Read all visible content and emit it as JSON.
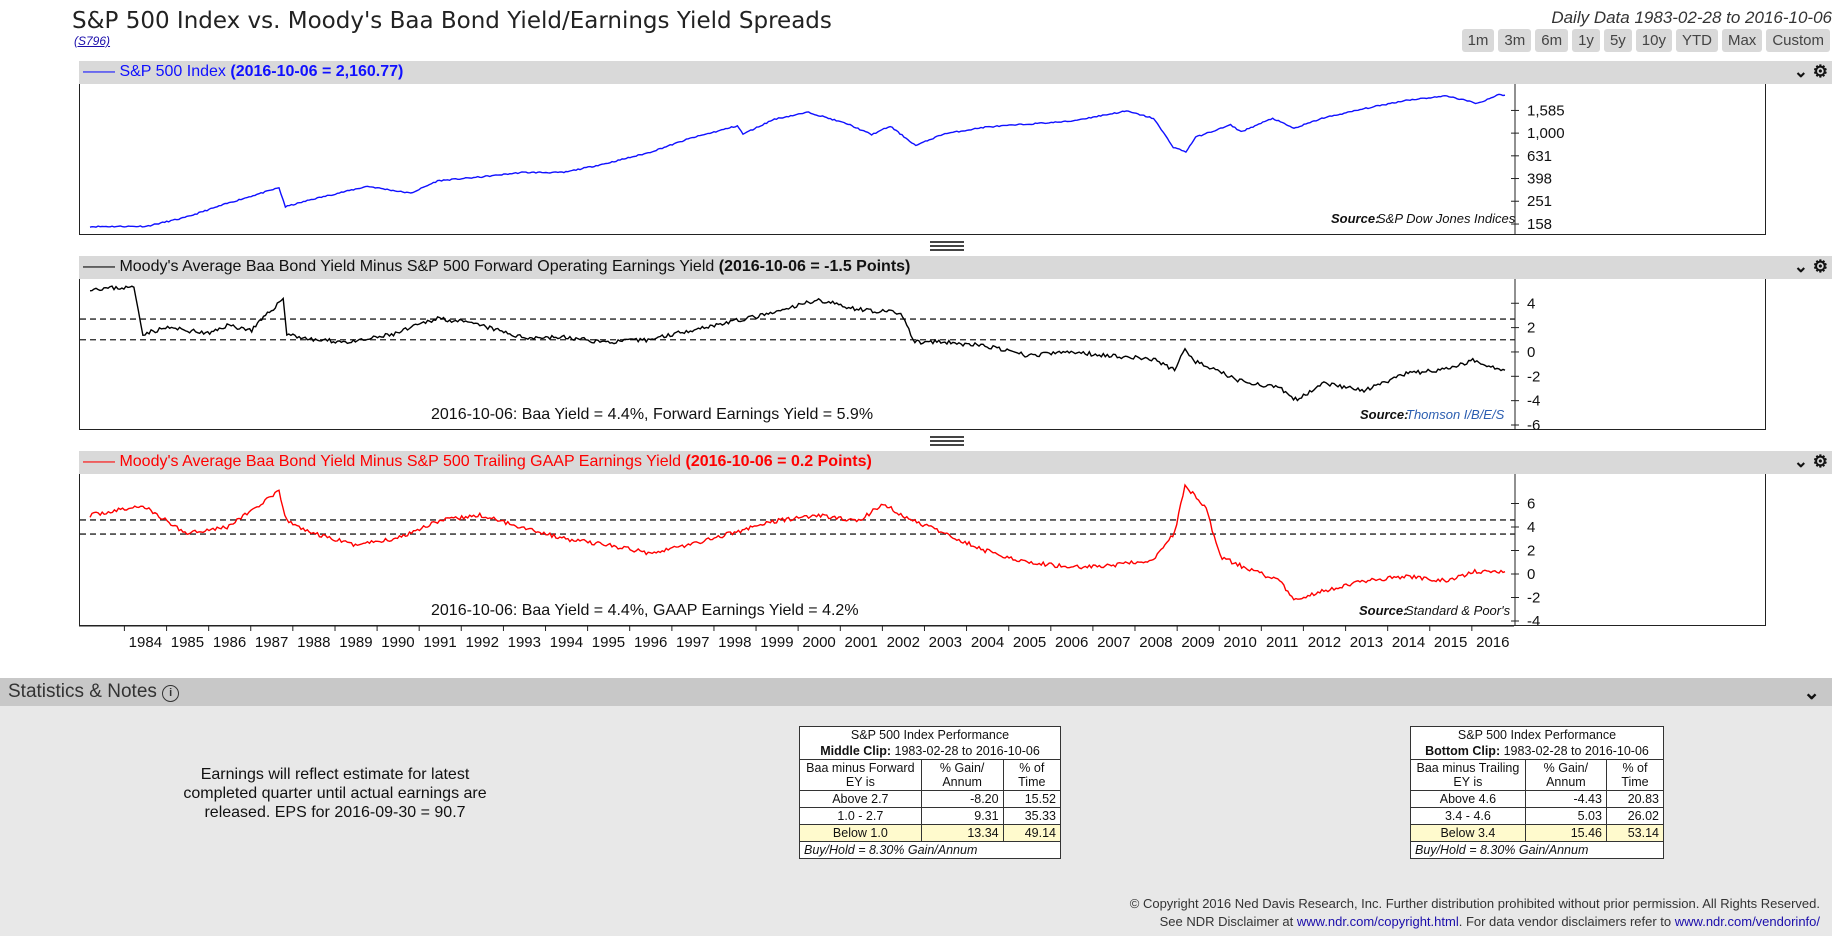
{
  "header": {
    "title": "S&P 500 Index vs. Moody's Baa Bond Yield/Earnings Yield Spreads",
    "code": "(S796)",
    "daily_range": "Daily Data 1983-02-28 to 2016-10-06",
    "range_buttons": [
      "1m",
      "3m",
      "6m",
      "1y",
      "5y",
      "10y",
      "YTD",
      "Max",
      "Custom"
    ]
  },
  "colors": {
    "sp500": "#1010ff",
    "forward": "#000000",
    "trailing": "#ff0000",
    "panel_bg": "#d9d9d9",
    "highlight": "#fffacd"
  },
  "icons": [
    "chevron-down-icon",
    "gear-icon",
    "info-icon",
    "splitter-icon"
  ],
  "panels": [
    {
      "label": "S&P 500 Index",
      "value_label": "(2016-10-06 = 2,160.77)",
      "source_label": "Source:",
      "source": "S&P Dow Jones Indices"
    },
    {
      "label": "Moody's Average Baa Bond Yield Minus S&P 500 Forward Operating Earnings Yield",
      "value_label": "(2016-10-06 = -1.5 Points)",
      "annotation": "2016-10-06: Baa Yield = 4.4%, Forward Earnings Yield = 5.9%",
      "source_label": "Source:",
      "source": "Thomson I/B/E/S"
    },
    {
      "label": "Moody's Average Baa Bond Yield Minus S&P 500 Trailing GAAP Earnings Yield",
      "value_label": "(2016-10-06 = 0.2 Points)",
      "annotation": "2016-10-06: Baa Yield = 4.4%, GAAP Earnings Yield = 4.2%",
      "source_label": "Source:",
      "source": "Standard & Poor's"
    }
  ],
  "chart_data": [
    {
      "type": "line",
      "title": "S&P 500 Index",
      "y_scale": "log",
      "yticks": [
        158,
        251,
        398,
        631,
        1000,
        1585
      ],
      "ytick_labels": [
        "158",
        "251",
        "398",
        "631",
        "1,000",
        "1,585"
      ],
      "ylim": [
        140,
        2400
      ],
      "xlim": [
        "1983-02-28",
        "2016-10-06"
      ],
      "series": [
        {
          "name": "S&P 500 Index",
          "color": "#1010ff",
          "x": [
            "1983-02-28",
            "1984-07-01",
            "1985-06-01",
            "1986-06-01",
            "1987-08-25",
            "1987-10-20",
            "1988-06-01",
            "1989-10-01",
            "1990-10-11",
            "1991-06-01",
            "1992-06-01",
            "1993-06-01",
            "1994-06-01",
            "1995-06-01",
            "1996-06-01",
            "1997-06-01",
            "1998-07-15",
            "1998-09-01",
            "1999-06-01",
            "2000-03-24",
            "2001-03-01",
            "2001-09-21",
            "2002-03-01",
            "2002-10-09",
            "2003-06-01",
            "2004-06-01",
            "2005-06-01",
            "2006-06-01",
            "2007-10-09",
            "2008-06-01",
            "2008-11-20",
            "2009-03-09",
            "2009-06-01",
            "2010-04-01",
            "2010-07-01",
            "2011-04-01",
            "2011-10-03",
            "2012-06-01",
            "2013-06-01",
            "2014-06-01",
            "2015-05-21",
            "2016-02-11",
            "2016-08-15",
            "2016-10-06"
          ],
          "y": [
            150,
            151,
            180,
            240,
            330,
            224,
            260,
            340,
            295,
            380,
            410,
            450,
            450,
            540,
            670,
            900,
            1160,
            980,
            1330,
            1527,
            1200,
            970,
            1150,
            777,
            980,
            1130,
            1200,
            1270,
            1565,
            1350,
            752,
            683,
            920,
            1180,
            1030,
            1350,
            1100,
            1350,
            1640,
            1950,
            2130,
            1829,
            2190,
            2160
          ]
        }
      ]
    },
    {
      "type": "line",
      "title": "Moody's Average Baa Bond Yield Minus S&P 500 Forward Operating Earnings Yield",
      "yticks": [
        -6,
        -4,
        -2,
        0,
        2,
        4
      ],
      "ylim": [
        -6,
        5.5
      ],
      "xlim": [
        "1983-02-28",
        "2016-10-06"
      ],
      "reference_lines": [
        2.7,
        1.0
      ],
      "series": [
        {
          "name": "Baa minus Forward EY",
          "color": "#000000",
          "x": [
            "1983-02-28",
            "1984-03-15",
            "1984-06-01",
            "1985-01-01",
            "1986-01-01",
            "1986-06-01",
            "1987-01-01",
            "1987-10-01",
            "1987-11-01",
            "1988-06-01",
            "1989-06-01",
            "1990-06-01",
            "1991-06-01",
            "1992-06-01",
            "1993-06-01",
            "1994-06-01",
            "1995-06-01",
            "1996-06-01",
            "1997-06-01",
            "1998-06-01",
            "1999-06-01",
            "2000-06-01",
            "2001-06-01",
            "2002-06-01",
            "2002-10-01",
            "2003-06-01",
            "2004-06-01",
            "2005-06-01",
            "2006-06-01",
            "2007-06-01",
            "2008-06-01",
            "2008-12-01",
            "2009-03-01",
            "2009-06-01",
            "2010-06-01",
            "2011-06-01",
            "2011-11-01",
            "2012-06-01",
            "2013-06-01",
            "2014-06-01",
            "2015-06-01",
            "2016-01-01",
            "2016-10-06"
          ],
          "y": [
            5.2,
            5.3,
            1.5,
            2.0,
            1.5,
            2.2,
            1.8,
            4.4,
            1.5,
            1.0,
            0.8,
            1.5,
            2.8,
            2.2,
            1.2,
            1.2,
            0.8,
            1.0,
            1.8,
            2.5,
            3.2,
            4.3,
            3.5,
            3.2,
            0.8,
            0.8,
            0.5,
            -0.3,
            0.0,
            -0.3,
            -0.6,
            -1.5,
            0.3,
            -0.8,
            -2.3,
            -3.0,
            -4.0,
            -2.5,
            -3.2,
            -1.8,
            -1.4,
            -0.7,
            -1.5
          ]
        }
      ]
    },
    {
      "type": "line",
      "title": "Moody's Average Baa Bond Yield Minus S&P 500 Trailing GAAP Earnings Yield",
      "yticks": [
        -4,
        -2,
        0,
        2,
        4,
        6
      ],
      "ylim": [
        -4,
        8
      ],
      "xlim": [
        "1983-02-28",
        "2016-10-06"
      ],
      "reference_lines": [
        4.6,
        3.4
      ],
      "series": [
        {
          "name": "Baa minus Trailing EY",
          "color": "#ff0000",
          "x": [
            "1983-02-28",
            "1984-06-01",
            "1985-06-01",
            "1986-06-01",
            "1987-08-25",
            "1987-11-01",
            "1988-06-01",
            "1989-06-01",
            "1990-06-01",
            "1991-06-01",
            "1992-06-01",
            "1993-06-01",
            "1994-06-01",
            "1995-06-01",
            "1996-06-01",
            "1997-06-01",
            "1998-06-01",
            "1999-06-01",
            "2000-06-01",
            "2001-06-01",
            "2002-01-01",
            "2002-06-01",
            "2003-06-01",
            "2004-06-01",
            "2005-06-01",
            "2006-06-01",
            "2007-06-01",
            "2008-06-01",
            "2008-12-01",
            "2009-03-01",
            "2009-09-01",
            "2010-01-01",
            "2010-06-01",
            "2011-06-01",
            "2011-10-01",
            "2012-06-01",
            "2013-06-01",
            "2014-06-01",
            "2015-06-01",
            "2016-01-01",
            "2016-10-06"
          ],
          "y": [
            5.0,
            5.8,
            3.5,
            4.0,
            7.0,
            4.5,
            3.5,
            2.5,
            3.0,
            4.5,
            5.0,
            4.0,
            3.0,
            2.5,
            1.8,
            2.5,
            3.5,
            4.5,
            5.0,
            4.5,
            6.0,
            5.0,
            3.5,
            2.0,
            1.0,
            0.6,
            0.7,
            1.2,
            3.5,
            7.6,
            5.5,
            1.5,
            0.8,
            -0.6,
            -2.2,
            -1.5,
            -0.6,
            -0.2,
            -0.6,
            0.2,
            0.2
          ]
        }
      ]
    }
  ],
  "xaxis": {
    "years": [
      "1984",
      "1985",
      "1986",
      "1987",
      "1988",
      "1989",
      "1990",
      "1991",
      "1992",
      "1993",
      "1994",
      "1995",
      "1996",
      "1997",
      "1998",
      "1999",
      "2000",
      "2001",
      "2002",
      "2003",
      "2004",
      "2005",
      "2006",
      "2007",
      "2008",
      "2009",
      "2010",
      "2011",
      "2012",
      "2013",
      "2014",
      "2015",
      "2016"
    ]
  },
  "notes": {
    "title": "Statistics & Notes",
    "eps_text": "Earnings will reflect estimate for latest completed quarter until actual earnings are released. EPS for 2016-09-30 = 90.7"
  },
  "stats_tables": [
    {
      "title": "S&P 500 Index Performance",
      "clip": "Middle Clip:",
      "clip_range": "1983-02-28 to 2016-10-06",
      "row_header": "Baa minus Forward EY is",
      "col1": "% Gain/ Annum",
      "col2": "% of Time",
      "rows": [
        {
          "range": "Above 2.7",
          "gain": "-8.20",
          "time": "15.52"
        },
        {
          "range": "1.0 - 2.7",
          "gain": "9.31",
          "time": "35.33"
        },
        {
          "range": "Below 1.0",
          "gain": "13.34",
          "time": "49.14"
        }
      ],
      "buy_hold": "Buy/Hold = 8.30% Gain/Annum"
    },
    {
      "title": "S&P 500 Index Performance",
      "clip": "Bottom Clip:",
      "clip_range": "1983-02-28 to 2016-10-06",
      "row_header": "Baa minus Trailing EY is",
      "col1": "% Gain/ Annum",
      "col2": "% of Time",
      "rows": [
        {
          "range": "Above 4.6",
          "gain": "-4.43",
          "time": "20.83"
        },
        {
          "range": "3.4 - 4.6",
          "gain": "5.03",
          "time": "26.02"
        },
        {
          "range": "Below 3.4",
          "gain": "15.46",
          "time": "53.14"
        }
      ],
      "buy_hold": "Buy/Hold = 8.30% Gain/Annum"
    }
  ],
  "footer": {
    "copyright": "© Copyright 2016 Ned Davis Research, Inc. Further distribution prohibited without prior permission. All Rights Reserved.",
    "disclaimer_prefix": "See NDR Disclaimer at",
    "disclaimer_link": "www.ndr.com/copyright.html",
    "vendor_prefix": ". For data vendor disclaimers refer to",
    "vendor_link": "www.ndr.com/vendorinfo/"
  }
}
